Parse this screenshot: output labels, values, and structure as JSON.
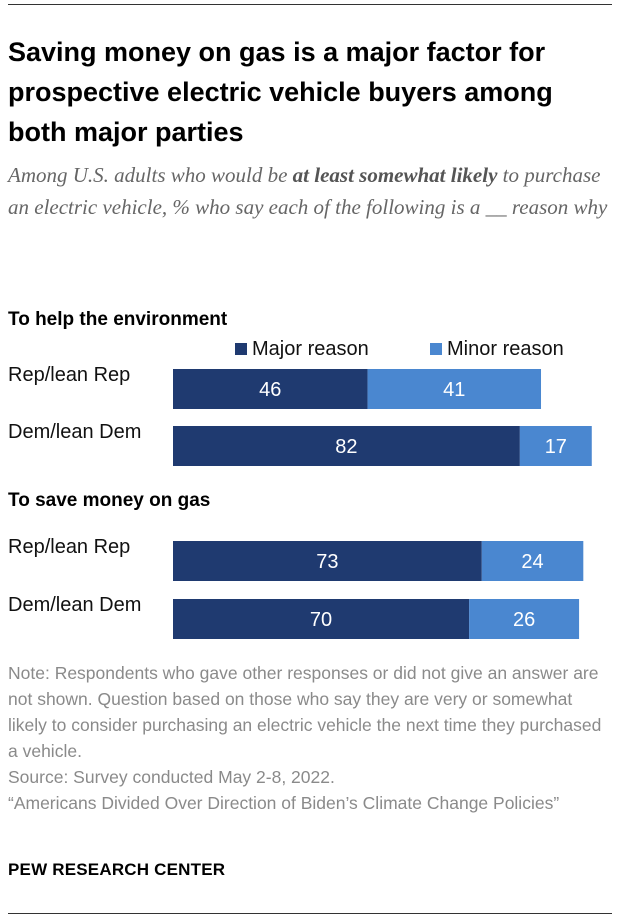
{
  "header": {
    "title": "Saving money on gas is a major factor for prospective electric vehicle buyers among both major parties",
    "subtitle_part1": "Among U.S. adults who would be ",
    "subtitle_emph": "at least somewhat likely",
    "subtitle_part2": " to purchase an electric vehicle, % who say each of the following is a __ reason why"
  },
  "chart_data": {
    "type": "bar",
    "orientation": "horizontal",
    "stacked": true,
    "legend": [
      {
        "name": "Major reason",
        "color": "#1f3a70"
      },
      {
        "name": "Minor reason",
        "color": "#4a87d0"
      }
    ],
    "xlim": [
      0,
      100
    ],
    "groups": [
      {
        "title": "To help the environment",
        "categories": [
          "Rep/lean Rep",
          "Dem/lean Dem"
        ],
        "series": [
          {
            "name": "Major reason",
            "values": [
              46,
              82
            ]
          },
          {
            "name": "Minor reason",
            "values": [
              41,
              17
            ]
          }
        ]
      },
      {
        "title": "To save money on gas",
        "categories": [
          "Rep/lean Rep",
          "Dem/lean Dem"
        ],
        "series": [
          {
            "name": "Major reason",
            "values": [
              73,
              70
            ]
          },
          {
            "name": "Minor reason",
            "values": [
              24,
              26
            ]
          }
        ]
      }
    ]
  },
  "notes": {
    "note": "Note: Respondents who gave other responses or did not give an answer are not shown. Question based on those who say they are very or somewhat likely to consider purchasing an electric vehicle the next time they purchased a vehicle.",
    "source": "Source: Survey conducted May 2-8, 2022.",
    "report": "“Americans Divided Over Direction of Biden’s Climate Change Policies”"
  },
  "footer": {
    "brand": "PEW RESEARCH CENTER"
  },
  "colors": {
    "major": "#1f3a70",
    "minor": "#4a87d0",
    "label_on_bar": "#ffffff"
  }
}
